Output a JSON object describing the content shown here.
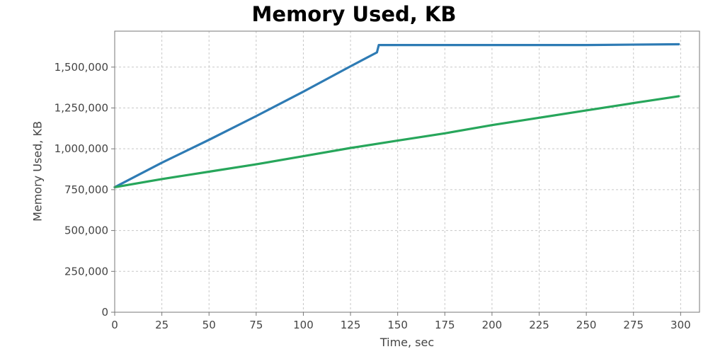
{
  "chart_data": {
    "type": "line",
    "title": "Memory Used, KB",
    "xlabel": "Time, sec",
    "ylabel": "Memory Used, KB",
    "xlim": [
      0,
      310
    ],
    "ylim": [
      0,
      1720000
    ],
    "x_ticks": [
      0,
      25,
      50,
      75,
      100,
      125,
      150,
      175,
      200,
      225,
      250,
      275,
      300
    ],
    "x_tick_labels": [
      "0",
      "25",
      "50",
      "75",
      "100",
      "125",
      "150",
      "175",
      "200",
      "225",
      "250",
      "275",
      "300"
    ],
    "y_ticks": [
      0,
      250000,
      500000,
      750000,
      1000000,
      1250000,
      1500000
    ],
    "y_tick_labels": [
      "0",
      "250,000",
      "500,000",
      "750,000",
      "1,000,000",
      "1,250,000",
      "1,500,000"
    ],
    "grid": true,
    "series": [
      {
        "color": "#2e7bb4",
        "x": [
          0,
          25,
          50,
          75,
          100,
          125,
          139,
          140,
          200,
          250,
          299
        ],
        "y": [
          765000,
          915000,
          1055000,
          1200000,
          1350000,
          1505000,
          1590000,
          1635000,
          1635000,
          1635000,
          1640000
        ]
      },
      {
        "color": "#27a65b",
        "x": [
          0,
          25,
          50,
          75,
          100,
          125,
          150,
          175,
          200,
          225,
          250,
          275,
          299
        ],
        "y": [
          765000,
          815000,
          860000,
          905000,
          955000,
          1005000,
          1050000,
          1095000,
          1145000,
          1190000,
          1235000,
          1280000,
          1322000
        ]
      }
    ]
  }
}
